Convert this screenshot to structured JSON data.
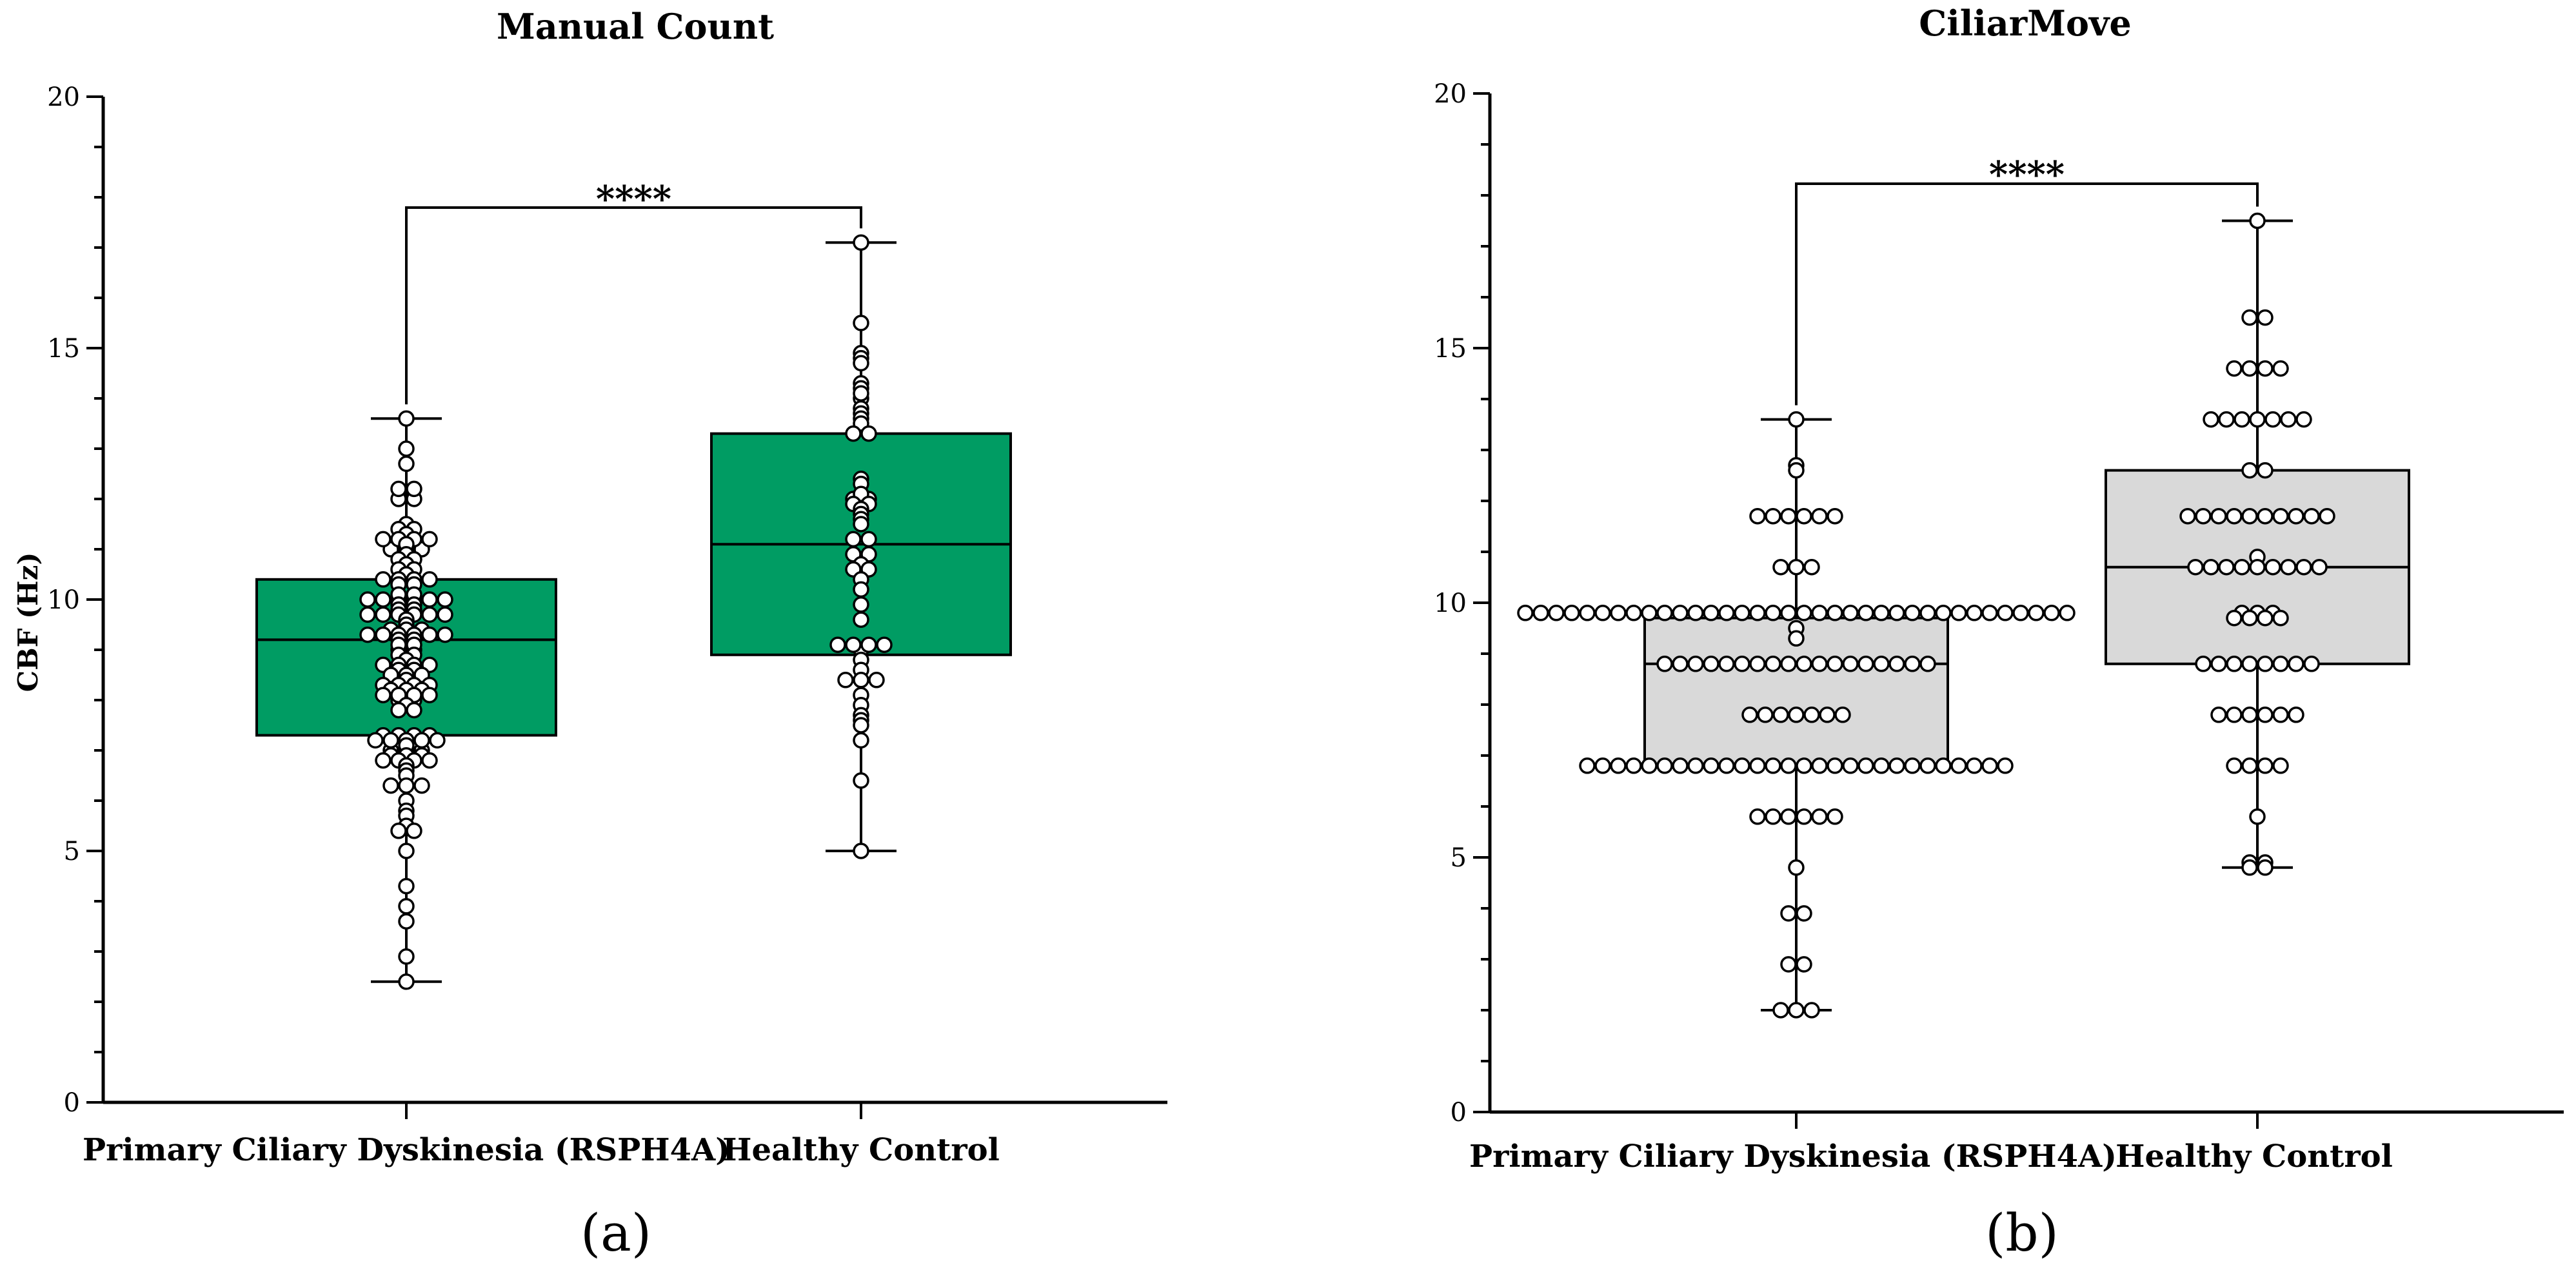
{
  "chart_data": [
    {
      "type": "boxplot",
      "panel_label": "a",
      "panel_label_display": "(a)",
      "title": "Manual Count",
      "ylabel": "CBF (Hz)",
      "xlabel": "",
      "ylim": [
        0,
        20
      ],
      "yticks": [
        0,
        5,
        10,
        15,
        20
      ],
      "box_color": "#009c63",
      "significance": "****",
      "categories": [
        "Primary Ciliary Dyskinesia (RSPH4A)",
        "Healthy Control"
      ],
      "series": [
        {
          "name": "Primary Ciliary Dyskinesia (RSPH4A)",
          "min": 2.4,
          "q1": 7.3,
          "median": 9.2,
          "q3": 10.4,
          "max": 13.6,
          "points": [
            13.6,
            13.0,
            12.7,
            12.2,
            12.2,
            12.0,
            12.0,
            11.5,
            11.4,
            11.4,
            11.3,
            11.2,
            11.2,
            11.2,
            11.2,
            11.1,
            11.0,
            11.0,
            11.0,
            10.9,
            10.8,
            10.8,
            10.7,
            10.6,
            10.6,
            10.5,
            10.4,
            10.4,
            10.4,
            10.4,
            10.3,
            10.3,
            10.1,
            10.1,
            10.0,
            10.0,
            10.0,
            10.0,
            10.0,
            10.0,
            9.9,
            9.9,
            9.8,
            9.8,
            9.7,
            9.7,
            9.7,
            9.7,
            9.7,
            9.7,
            9.6,
            9.5,
            9.4,
            9.4,
            9.4,
            9.3,
            9.3,
            9.3,
            9.3,
            9.3,
            9.3,
            9.2,
            9.2,
            9.1,
            9.1,
            9.0,
            9.0,
            8.9,
            8.9,
            8.8,
            8.7,
            8.7,
            8.7,
            8.7,
            8.6,
            8.6,
            8.5,
            8.5,
            8.5,
            8.4,
            8.3,
            8.3,
            8.3,
            8.3,
            8.2,
            8.2,
            8.2,
            8.1,
            8.1,
            8.1,
            8.1,
            8.0,
            8.0,
            7.9,
            7.8,
            7.8,
            7.3,
            7.3,
            7.3,
            7.3,
            7.2,
            7.2,
            7.2,
            7.2,
            7.2,
            7.1,
            7.0,
            7.0,
            7.0,
            6.9,
            6.9,
            6.9,
            6.8,
            6.8,
            6.8,
            6.8,
            6.7,
            6.6,
            6.5,
            6.3,
            6.3,
            6.3,
            6.0,
            5.8,
            5.7,
            5.5,
            5.4,
            5.4,
            5.0,
            4.3,
            3.9,
            3.6,
            2.9,
            2.4
          ]
        },
        {
          "name": "Healthy Control",
          "min": 5.0,
          "q1": 8.9,
          "median": 11.1,
          "q3": 13.3,
          "max": 17.1,
          "points": [
            17.1,
            15.5,
            14.9,
            14.8,
            14.7,
            14.3,
            14.2,
            14.1,
            14.0,
            13.8,
            13.7,
            13.6,
            13.5,
            13.3,
            13.3,
            12.4,
            12.3,
            12.1,
            12.0,
            12.0,
            11.9,
            11.9,
            11.8,
            11.7,
            11.6,
            11.5,
            11.2,
            11.2,
            10.9,
            10.9,
            10.7,
            10.6,
            10.6,
            10.4,
            10.2,
            9.9,
            9.6,
            9.1,
            9.1,
            9.1,
            9.1,
            9.0,
            8.8,
            8.6,
            8.4,
            8.4,
            8.4,
            8.1,
            7.9,
            7.7,
            7.6,
            7.5,
            7.2,
            6.4,
            5.0
          ]
        }
      ]
    },
    {
      "type": "boxplot",
      "panel_label": "b",
      "panel_label_display": "(b)",
      "title": "CiliarMove",
      "ylabel": "",
      "xlabel": "",
      "ylim": [
        0,
        20
      ],
      "yticks": [
        0,
        5,
        10,
        15,
        20
      ],
      "box_color": "#d9d9d9",
      "significance": "****",
      "categories": [
        "Primary Ciliary Dyskinesia (RSPH4A)",
        "Healthy Control"
      ],
      "series": [
        {
          "name": "Primary Ciliary Dyskinesia (RSPH4A)",
          "min": 2.0,
          "q1": 6.8,
          "median": 8.8,
          "q3": 9.7,
          "max": 13.6,
          "points": [
            13.6,
            12.7,
            12.6,
            11.7,
            11.7,
            11.7,
            11.7,
            11.7,
            11.7,
            10.7,
            10.7,
            10.7,
            9.8,
            9.8,
            9.8,
            9.8,
            9.8,
            9.8,
            9.8,
            9.8,
            9.8,
            9.8,
            9.8,
            9.8,
            9.8,
            9.8,
            9.8,
            9.8,
            9.8,
            9.8,
            9.8,
            9.8,
            9.8,
            9.8,
            9.8,
            9.8,
            9.8,
            9.8,
            9.8,
            9.8,
            9.8,
            9.8,
            9.8,
            9.8,
            9.8,
            9.8,
            9.8,
            9.8,
            9.5,
            9.3,
            8.8,
            8.8,
            8.8,
            8.8,
            8.8,
            8.8,
            8.8,
            8.8,
            8.8,
            8.8,
            8.8,
            8.8,
            8.8,
            8.8,
            8.8,
            8.8,
            8.8,
            8.8,
            7.8,
            7.8,
            7.8,
            7.8,
            7.8,
            7.8,
            7.8,
            6.8,
            6.8,
            6.8,
            6.8,
            6.8,
            6.8,
            6.8,
            6.8,
            6.8,
            6.8,
            6.8,
            6.8,
            6.8,
            6.8,
            6.8,
            6.8,
            6.8,
            6.8,
            6.8,
            6.8,
            6.8,
            6.8,
            6.8,
            6.8,
            6.8,
            6.8,
            6.8,
            6.8,
            5.8,
            5.8,
            5.8,
            5.8,
            5.8,
            5.8,
            4.8,
            3.9,
            3.9,
            2.9,
            2.9,
            2.0,
            2.0,
            2.0
          ]
        },
        {
          "name": "Healthy Control",
          "min": 4.8,
          "q1": 8.8,
          "median": 10.7,
          "q3": 12.6,
          "max": 17.5,
          "points": [
            17.5,
            15.6,
            15.6,
            14.6,
            14.6,
            14.6,
            14.6,
            13.6,
            13.6,
            13.6,
            13.6,
            13.6,
            13.6,
            13.6,
            12.6,
            12.6,
            11.7,
            11.7,
            11.7,
            11.7,
            11.7,
            11.7,
            11.7,
            11.7,
            11.7,
            11.7,
            10.9,
            10.7,
            10.7,
            10.7,
            10.7,
            10.7,
            10.7,
            10.7,
            10.7,
            10.7,
            9.8,
            9.8,
            9.8,
            9.7,
            9.7,
            9.7,
            9.7,
            8.8,
            8.8,
            8.8,
            8.8,
            8.8,
            8.8,
            8.8,
            8.8,
            7.8,
            7.8,
            7.8,
            7.8,
            7.8,
            7.8,
            6.8,
            6.8,
            6.8,
            6.8,
            5.8,
            4.9,
            4.9,
            4.8,
            4.8
          ]
        }
      ]
    }
  ]
}
